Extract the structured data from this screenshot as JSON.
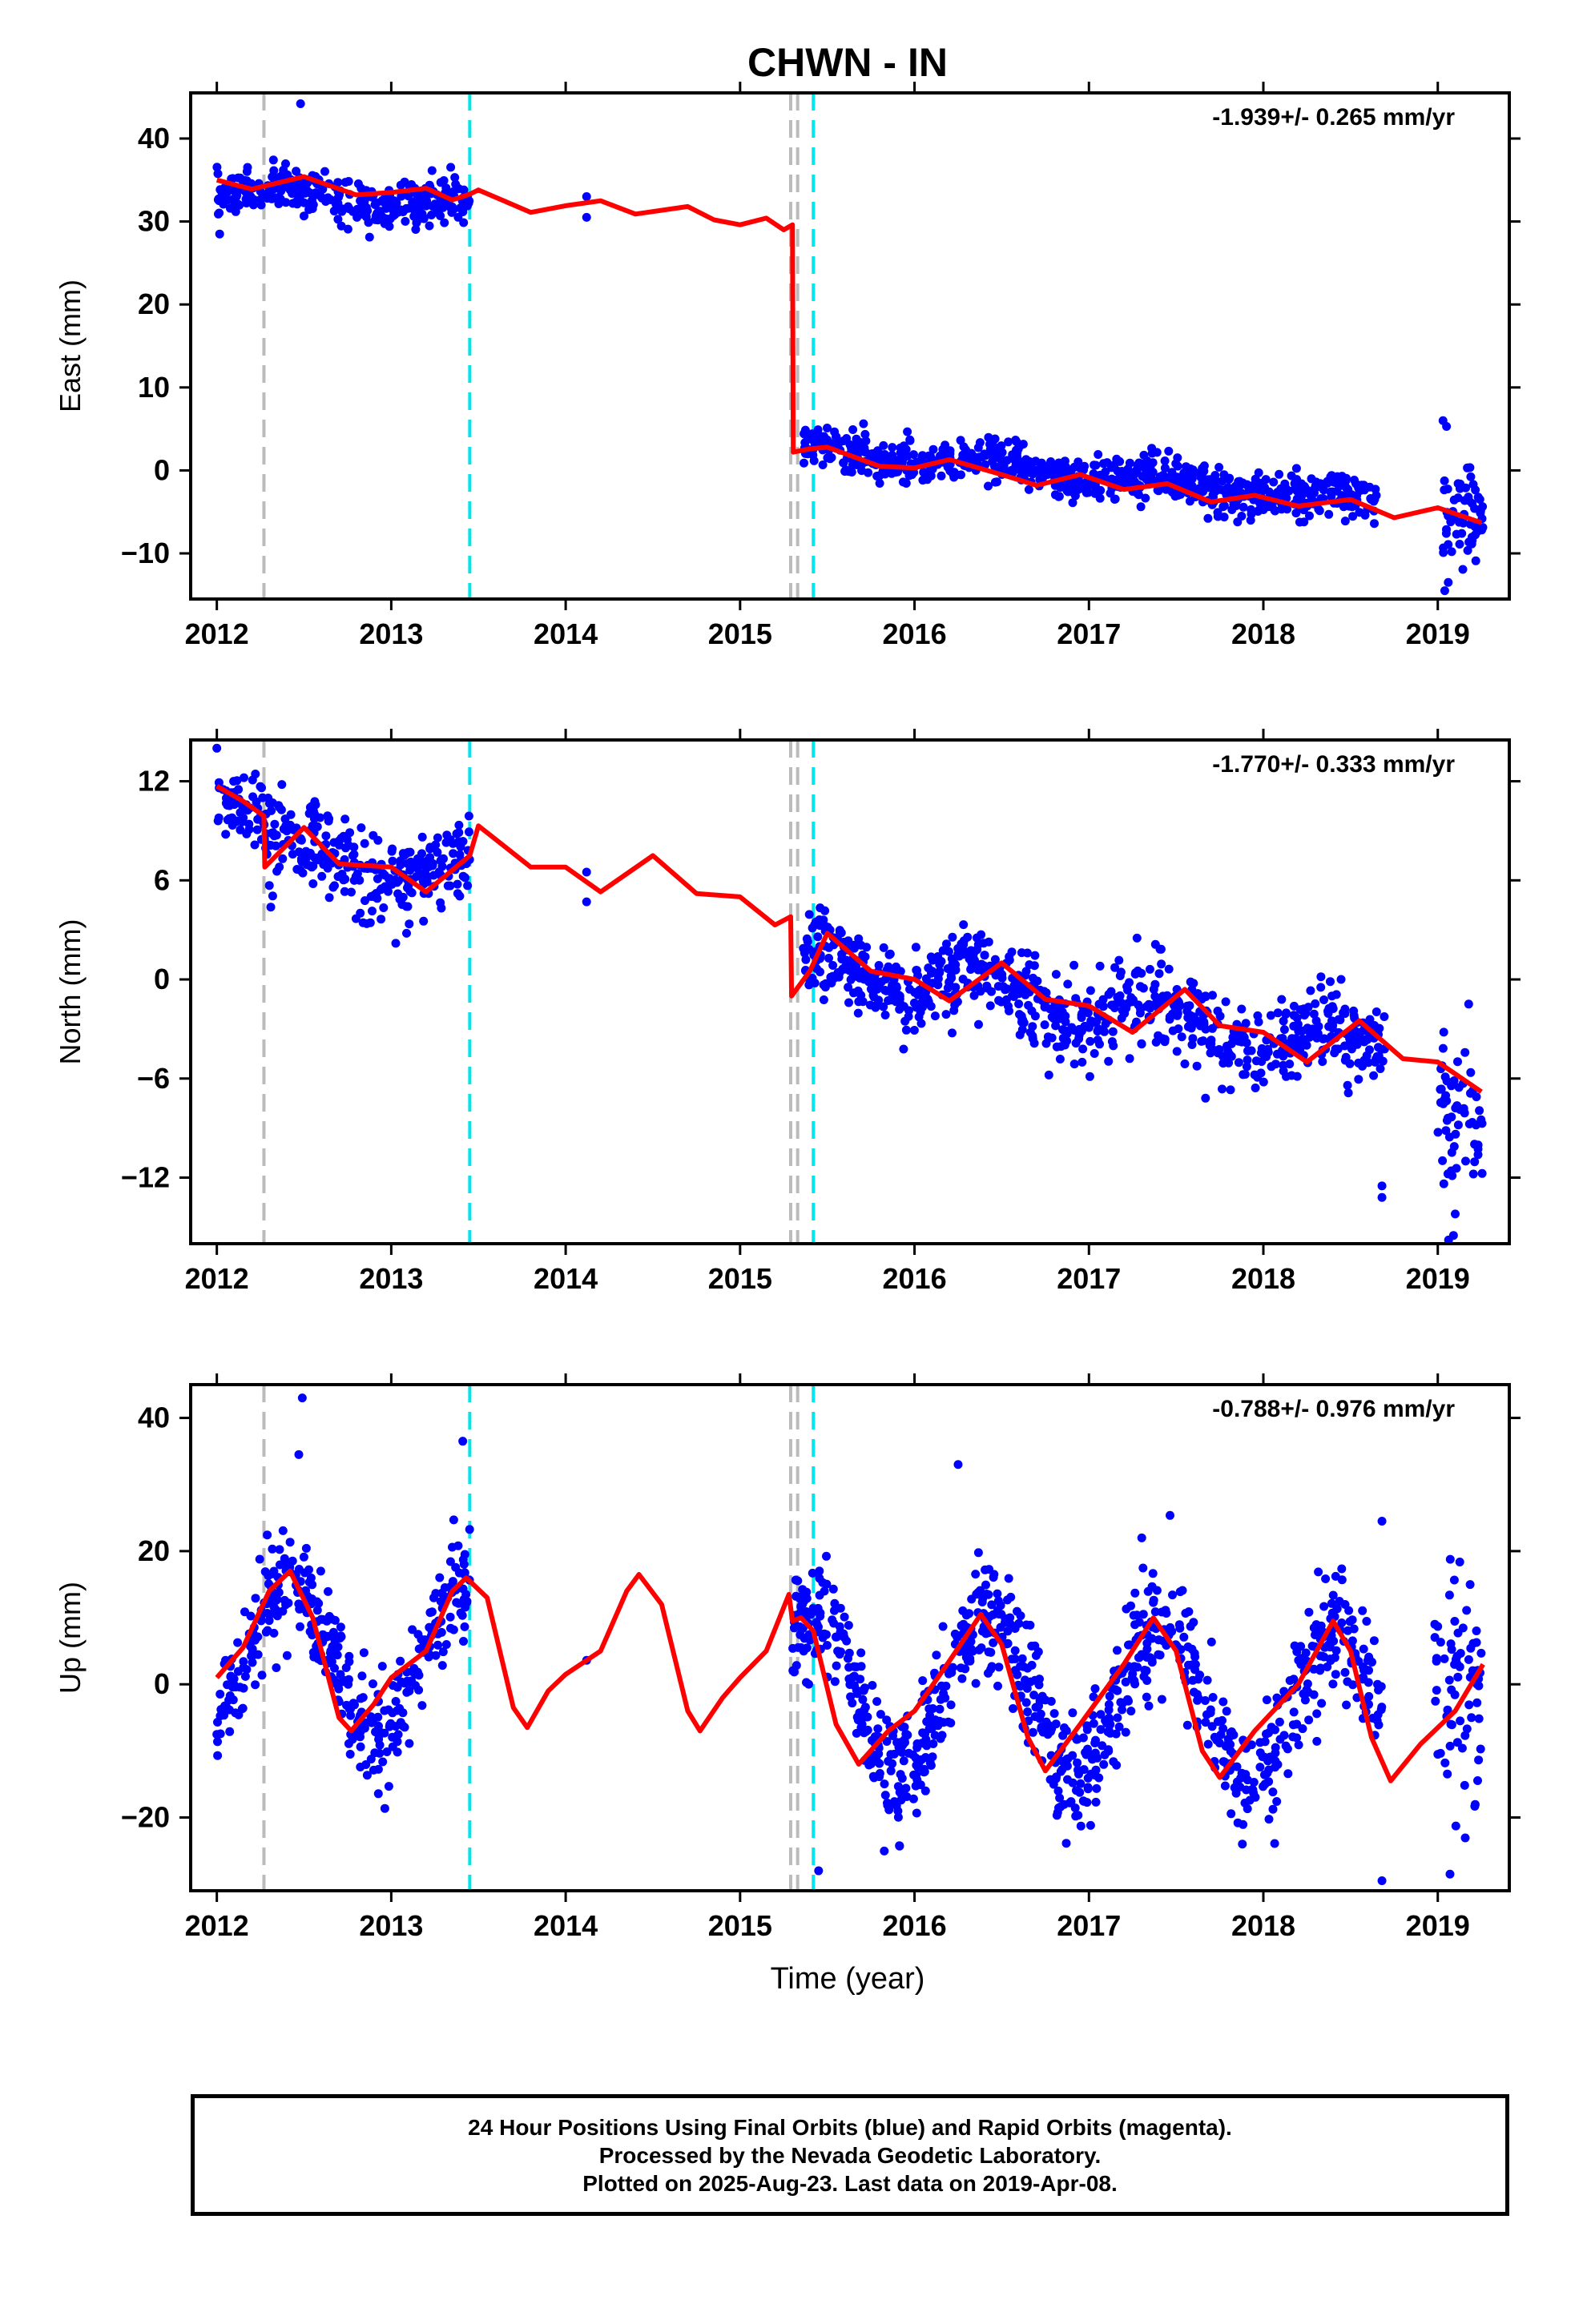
{
  "title": "CHWN - IN",
  "xlabel": "Time (year)",
  "colors": {
    "final_orbits": "#0000ff",
    "model": "#ff0000",
    "equipment_change": "#bbbbbb",
    "other_event": "#00e5ee",
    "axes": "#000000"
  },
  "footer": {
    "line1": "24 Hour Positions Using Final Orbits (blue) and Rapid Orbits (magenta).",
    "line2": "Processed by the Nevada Geodetic Laboratory.",
    "line3": "Plotted on 2025-Aug-23. Last data on 2019-Apr-08."
  },
  "chart_data": [
    {
      "type": "scatter",
      "component": "East",
      "ylabel": "East (mm)",
      "rate_label": "-1.939+/- 0.265 mm/yr",
      "xlim": [
        2011.85,
        2019.41
      ],
      "ylim": [
        -15.5,
        45.5
      ],
      "yticks": [
        -10,
        0,
        10,
        20,
        30,
        40
      ],
      "xticks": [
        2012,
        2013,
        2014,
        2015,
        2016,
        2017,
        2018,
        2019
      ],
      "gray_lines": [
        2012.27,
        2015.29,
        2015.33
      ],
      "cyan_lines": [
        2013.45,
        2015.42
      ],
      "series": [
        {
          "kind": "points",
          "segments": [
            {
              "t0": 2012.0,
              "t1": 2013.45,
              "n": 340,
              "offset": 33.7,
              "rate": -1.2,
              "amp": 0.8,
              "noise": 1.3
            },
            {
              "t0": 2015.36,
              "t1": 2018.65,
              "n": 800,
              "offset": 2.5,
              "rate": -1.939,
              "amp": 0.8,
              "noise": 1.3
            },
            {
              "t0": 2019.02,
              "t1": 2019.26,
              "n": 60,
              "offset": -6.5,
              "rate": 0,
              "amp": 0,
              "noise": 3.0
            }
          ],
          "extra_points": [
            [
              2012.48,
              44.2
            ],
            [
              2014.12,
              33.0
            ],
            [
              2014.12,
              30.5
            ],
            [
              2019.03,
              6.0
            ],
            [
              2019.05,
              5.3
            ],
            [
              2019.04,
              -14.5
            ],
            [
              2019.06,
              -13.5
            ]
          ]
        },
        {
          "kind": "model",
          "knots": [
            [
              2012.0,
              35.0
            ],
            [
              2012.2,
              33.9
            ],
            [
              2012.5,
              35.4
            ],
            [
              2012.8,
              33.2
            ],
            [
              2013.0,
              33.5
            ],
            [
              2013.2,
              34.0
            ],
            [
              2013.35,
              32.6
            ],
            [
              2013.45,
              33.3
            ],
            [
              2013.5,
              33.8
            ],
            [
              2013.8,
              31.1
            ],
            [
              2014.0,
              31.9
            ],
            [
              2014.2,
              32.5
            ],
            [
              2014.4,
              30.9
            ],
            [
              2014.7,
              31.8
            ],
            [
              2014.85,
              30.2
            ],
            [
              2015.0,
              29.6
            ],
            [
              2015.15,
              30.4
            ],
            [
              2015.25,
              29.0
            ],
            [
              2015.3,
              29.6
            ],
            [
              2015.305,
              2.2
            ],
            [
              2015.4,
              2.6
            ],
            [
              2015.5,
              2.8
            ],
            [
              2015.8,
              0.5
            ],
            [
              2016.0,
              0.3
            ],
            [
              2016.2,
              1.3
            ],
            [
              2016.5,
              -0.5
            ],
            [
              2016.7,
              -1.8
            ],
            [
              2016.95,
              -0.5
            ],
            [
              2017.2,
              -2.3
            ],
            [
              2017.45,
              -1.6
            ],
            [
              2017.7,
              -3.8
            ],
            [
              2017.95,
              -3.0
            ],
            [
              2018.2,
              -4.3
            ],
            [
              2018.5,
              -3.5
            ],
            [
              2018.75,
              -5.7
            ],
            [
              2019.0,
              -4.5
            ],
            [
              2019.25,
              -6.3
            ]
          ]
        }
      ]
    },
    {
      "type": "scatter",
      "component": "North",
      "ylabel": "North (mm)",
      "rate_label": "-1.770+/- 0.333 mm/yr",
      "xlim": [
        2011.85,
        2019.41
      ],
      "ylim": [
        -16,
        14.5
      ],
      "yticks": [
        -12,
        -6,
        0,
        6,
        12
      ],
      "xticks": [
        2012,
        2013,
        2014,
        2015,
        2016,
        2017,
        2018,
        2019
      ],
      "gray_lines": [
        2012.27,
        2015.29,
        2015.33
      ],
      "cyan_lines": [
        2013.45,
        2015.42
      ],
      "series": [
        {
          "kind": "points",
          "segments": [
            {
              "t0": 2012.0,
              "t1": 2012.27,
              "n": 60,
              "offset": 11.2,
              "rate": -4.0,
              "amp": 0.6,
              "noise": 0.9
            },
            {
              "t0": 2012.27,
              "t1": 2013.45,
              "n": 280,
              "offset": 8.0,
              "rate": -1.6,
              "amp": 1.0,
              "noise": 1.3
            },
            {
              "t0": 2015.36,
              "t1": 2018.7,
              "n": 820,
              "offset": 1.2,
              "rate": -1.77,
              "amp": 1.0,
              "noise": 1.3
            },
            {
              "t0": 2019.0,
              "t1": 2019.26,
              "n": 60,
              "offset": -8.0,
              "rate": 0,
              "amp": 0,
              "noise": 2.3
            }
          ],
          "extra_points": [
            [
              2012.0,
              14.0
            ],
            [
              2014.12,
              6.5
            ],
            [
              2014.12,
              4.7
            ],
            [
              2018.68,
              -12.5
            ],
            [
              2018.68,
              -13.2
            ],
            [
              2019.09,
              -15.5
            ],
            [
              2019.1,
              -14.2
            ]
          ]
        },
        {
          "kind": "model",
          "knots": [
            [
              2012.0,
              11.7
            ],
            [
              2012.15,
              10.8
            ],
            [
              2012.27,
              9.9
            ],
            [
              2012.275,
              6.8
            ],
            [
              2012.5,
              9.2
            ],
            [
              2012.7,
              7.0
            ],
            [
              2013.0,
              6.8
            ],
            [
              2013.2,
              5.3
            ],
            [
              2013.45,
              7.5
            ],
            [
              2013.5,
              9.3
            ],
            [
              2013.8,
              6.8
            ],
            [
              2014.0,
              6.8
            ],
            [
              2014.2,
              5.3
            ],
            [
              2014.5,
              7.5
            ],
            [
              2014.75,
              5.2
            ],
            [
              2015.0,
              5.0
            ],
            [
              2015.2,
              3.3
            ],
            [
              2015.29,
              3.8
            ],
            [
              2015.295,
              -1.0
            ],
            [
              2015.33,
              -0.5
            ],
            [
              2015.4,
              0.5
            ],
            [
              2015.5,
              2.8
            ],
            [
              2015.75,
              0.5
            ],
            [
              2016.0,
              0.0
            ],
            [
              2016.2,
              -1.3
            ],
            [
              2016.5,
              1.0
            ],
            [
              2016.75,
              -1.2
            ],
            [
              2017.0,
              -1.6
            ],
            [
              2017.25,
              -3.2
            ],
            [
              2017.55,
              -0.6
            ],
            [
              2017.75,
              -2.8
            ],
            [
              2018.0,
              -3.2
            ],
            [
              2018.25,
              -5.0
            ],
            [
              2018.55,
              -2.5
            ],
            [
              2018.8,
              -4.8
            ],
            [
              2019.0,
              -5.0
            ],
            [
              2019.25,
              -6.8
            ]
          ]
        }
      ]
    },
    {
      "type": "scatter",
      "component": "Up",
      "ylabel": "Up (mm)",
      "rate_label": "-0.788+/- 0.976 mm/yr",
      "xlim": [
        2011.85,
        2019.41
      ],
      "ylim": [
        -31,
        45
      ],
      "yticks": [
        -20,
        0,
        20,
        40
      ],
      "xticks": [
        2012,
        2013,
        2014,
        2015,
        2016,
        2017,
        2018,
        2019
      ],
      "gray_lines": [
        2012.27,
        2015.29,
        2015.33
      ],
      "cyan_lines": [
        2013.45,
        2015.42
      ],
      "series": [
        {
          "kind": "points",
          "segments": [
            {
              "t0": 2012.0,
              "t1": 2013.45,
              "n": 380,
              "offset": 4.0,
              "rate": 0,
              "amp": 11.0,
              "noise": 4.0
            },
            {
              "t0": 2015.3,
              "t1": 2018.68,
              "n": 900,
              "offset": -1.0,
              "rate": -0.788,
              "amp": 11.5,
              "noise": 4.5
            },
            {
              "t0": 2018.98,
              "t1": 2019.26,
              "n": 70,
              "offset": 0.0,
              "rate": 0,
              "amp": 0,
              "noise": 9.0
            }
          ],
          "extra_points": [
            [
              2012.49,
              43.0
            ],
            [
              2012.47,
              34.5
            ],
            [
              2013.41,
              36.5
            ],
            [
              2016.25,
              33.0
            ],
            [
              2014.12,
              3.6
            ],
            [
              2018.68,
              24.5
            ],
            [
              2018.68,
              -29.5
            ],
            [
              2019.07,
              -28.5
            ],
            [
              2015.45,
              -28.0
            ]
          ]
        },
        {
          "kind": "model",
          "knots": [
            [
              2012.0,
              1.0
            ],
            [
              2012.15,
              5.5
            ],
            [
              2012.3,
              14.0
            ],
            [
              2012.42,
              17.0
            ],
            [
              2012.55,
              10.0
            ],
            [
              2012.7,
              -5.0
            ],
            [
              2012.77,
              -7.0
            ],
            [
              2012.9,
              -3.0
            ],
            [
              2013.0,
              1.0
            ],
            [
              2013.2,
              5.0
            ],
            [
              2013.35,
              14.0
            ],
            [
              2013.43,
              16.0
            ],
            [
              2013.55,
              13.0
            ],
            [
              2013.7,
              -3.5
            ],
            [
              2013.78,
              -6.5
            ],
            [
              2013.9,
              -1.0
            ],
            [
              2014.0,
              1.5
            ],
            [
              2014.2,
              5.0
            ],
            [
              2014.35,
              14.0
            ],
            [
              2014.42,
              16.5
            ],
            [
              2014.55,
              12.0
            ],
            [
              2014.7,
              -4.0
            ],
            [
              2014.77,
              -7.0
            ],
            [
              2014.9,
              -2.0
            ],
            [
              2015.0,
              1.0
            ],
            [
              2015.15,
              5.0
            ],
            [
              2015.28,
              13.5
            ],
            [
              2015.3,
              9.5
            ],
            [
              2015.35,
              10.0
            ],
            [
              2015.42,
              8.0
            ],
            [
              2015.55,
              -6.0
            ],
            [
              2015.68,
              -12.0
            ],
            [
              2015.85,
              -7.0
            ],
            [
              2016.0,
              -4.0
            ],
            [
              2016.2,
              3.5
            ],
            [
              2016.38,
              10.5
            ],
            [
              2016.5,
              6.0
            ],
            [
              2016.65,
              -8.0
            ],
            [
              2016.75,
              -13.0
            ],
            [
              2016.95,
              -6.0
            ],
            [
              2017.2,
              3.0
            ],
            [
              2017.37,
              10.0
            ],
            [
              2017.5,
              5.0
            ],
            [
              2017.65,
              -10.0
            ],
            [
              2017.75,
              -14.0
            ],
            [
              2017.95,
              -7.0
            ],
            [
              2018.2,
              0.0
            ],
            [
              2018.4,
              9.5
            ],
            [
              2018.5,
              5.0
            ],
            [
              2018.62,
              -8.0
            ],
            [
              2018.73,
              -14.5
            ],
            [
              2018.9,
              -9.0
            ],
            [
              2019.1,
              -4.0
            ],
            [
              2019.26,
              3.0
            ]
          ]
        }
      ]
    }
  ]
}
